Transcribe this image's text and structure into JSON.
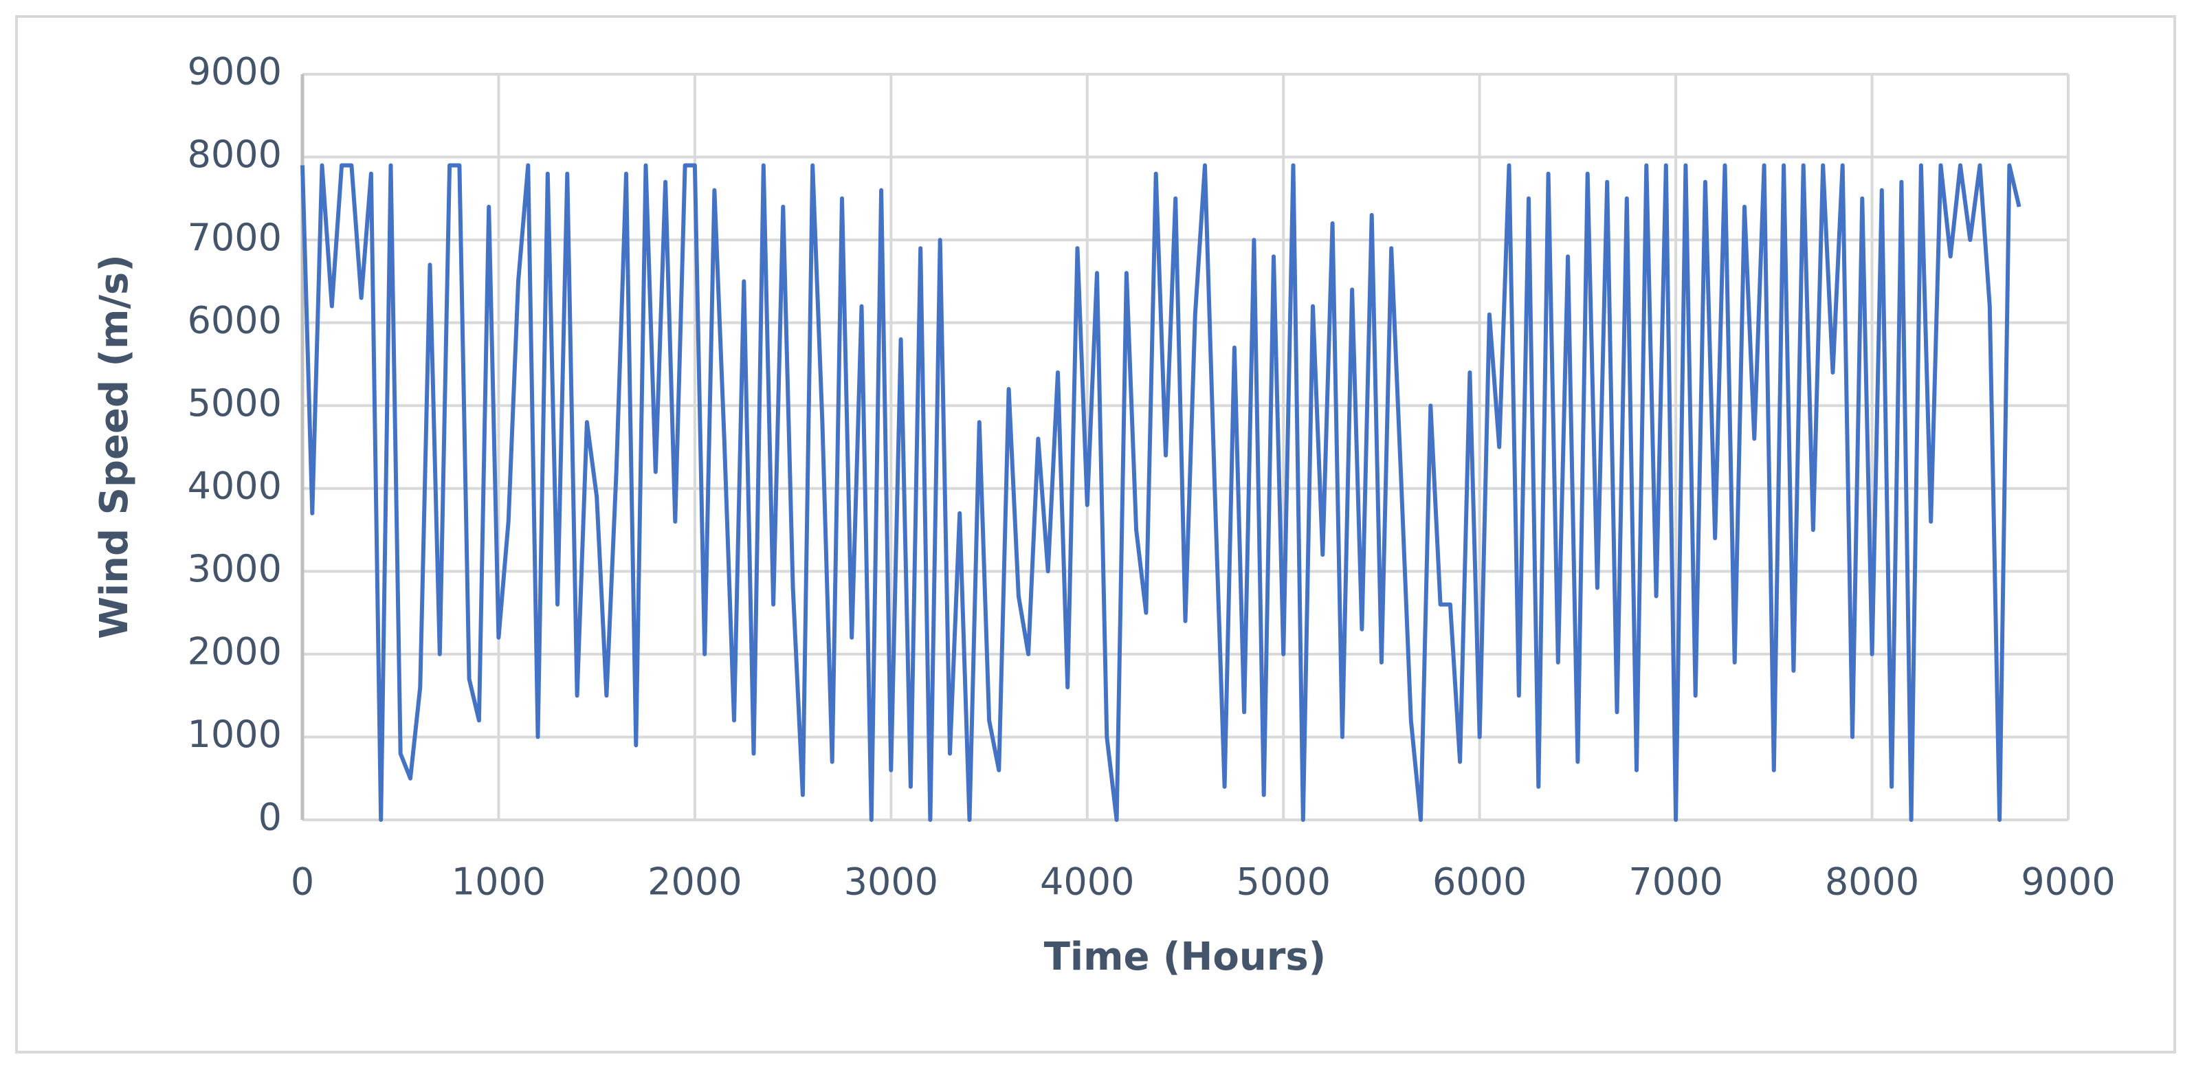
{
  "chart_data": {
    "type": "line",
    "y_label": "Wind Speed (m/s)",
    "x_label": "Time (Hours)",
    "color": "#4472c4",
    "grid": true,
    "xlim": [
      0,
      9000
    ],
    "xticks": [
      0,
      1000,
      2000,
      3000,
      4000,
      5000,
      6000,
      7000,
      8000,
      9000
    ],
    "ylim": [
      0,
      9000
    ],
    "yticks": [
      0,
      1000,
      2000,
      3000,
      4000,
      5000,
      6000,
      7000,
      8000,
      9000
    ],
    "x": [
      0,
      50,
      100,
      150,
      200,
      250,
      300,
      350,
      400,
      450,
      500,
      550,
      600,
      650,
      700,
      750,
      800,
      850,
      900,
      950,
      1000,
      1050,
      1100,
      1150,
      1200,
      1250,
      1300,
      1350,
      1400,
      1450,
      1500,
      1550,
      1600,
      1650,
      1700,
      1750,
      1800,
      1850,
      1900,
      1950,
      2000,
      2050,
      2100,
      2150,
      2200,
      2250,
      2300,
      2350,
      2400,
      2450,
      2500,
      2550,
      2600,
      2650,
      2700,
      2750,
      2800,
      2850,
      2900,
      2950,
      3000,
      3050,
      3100,
      3150,
      3200,
      3250,
      3300,
      3350,
      3400,
      3450,
      3500,
      3550,
      3600,
      3650,
      3700,
      3750,
      3800,
      3850,
      3900,
      3950,
      4000,
      4050,
      4100,
      4150,
      4200,
      4250,
      4300,
      4350,
      4400,
      4450,
      4500,
      4550,
      4600,
      4650,
      4700,
      4750,
      4800,
      4850,
      4900,
      4950,
      5000,
      5050,
      5100,
      5150,
      5200,
      5250,
      5300,
      5350,
      5400,
      5450,
      5500,
      5550,
      5600,
      5650,
      5700,
      5750,
      5800,
      5850,
      5900,
      5950,
      6000,
      6050,
      6100,
      6150,
      6200,
      6250,
      6300,
      6350,
      6400,
      6450,
      6500,
      6550,
      6600,
      6650,
      6700,
      6750,
      6800,
      6850,
      6900,
      6950,
      7000,
      7050,
      7100,
      7150,
      7200,
      7250,
      7300,
      7350,
      7400,
      7450,
      7500,
      7550,
      7600,
      7650,
      7700,
      7750,
      7800,
      7850,
      7900,
      7950,
      8000,
      8050,
      8100,
      8150,
      8200,
      8250,
      8300,
      8350,
      8400,
      8450,
      8500,
      8550,
      8600,
      8650,
      8700,
      8750
    ],
    "values": [
      7900,
      3700,
      7900,
      6200,
      7900,
      7900,
      6300,
      7800,
      0,
      7900,
      800,
      500,
      1600,
      6700,
      2000,
      7900,
      7900,
      1700,
      1200,
      7400,
      2200,
      3600,
      6500,
      7900,
      1000,
      7800,
      2600,
      7800,
      1500,
      4800,
      3900,
      1500,
      4200,
      7800,
      900,
      7900,
      4200,
      7700,
      3600,
      7900,
      7900,
      2000,
      7600,
      4600,
      1200,
      6500,
      800,
      7900,
      2600,
      7400,
      2800,
      300,
      7900,
      4800,
      700,
      7500,
      2200,
      6200,
      0,
      7600,
      600,
      5800,
      400,
      6900,
      0,
      7000,
      800,
      3700,
      0,
      4800,
      1200,
      600,
      5200,
      2700,
      2000,
      4600,
      3000,
      5400,
      1600,
      6900,
      3800,
      6600,
      1000,
      0,
      6600,
      3500,
      2500,
      7800,
      4400,
      7500,
      2400,
      6100,
      7900,
      4000,
      400,
      5700,
      1300,
      7000,
      300,
      6800,
      2000,
      7900,
      0,
      6200,
      3200,
      7200,
      1000,
      6400,
      2300,
      7300,
      1900,
      6900,
      4100,
      1200,
      0,
      5000,
      2600,
      2600,
      700,
      5400,
      1000,
      6100,
      4500,
      7900,
      1500,
      7500,
      400,
      7800,
      1900,
      6800,
      700,
      7800,
      2800,
      7700,
      1300,
      7500,
      600,
      7900,
      2700,
      7900,
      0,
      7900,
      1500,
      7700,
      3400,
      7900,
      1900,
      7400,
      4600,
      7900,
      600,
      7900,
      1800,
      7900,
      3500,
      7900,
      5400,
      7900,
      1000,
      7500,
      2000,
      7600,
      400,
      7700,
      0,
      7900,
      3600,
      7900,
      6800,
      7900,
      7000,
      7900,
      6200,
      0,
      7900,
      7400
    ]
  }
}
